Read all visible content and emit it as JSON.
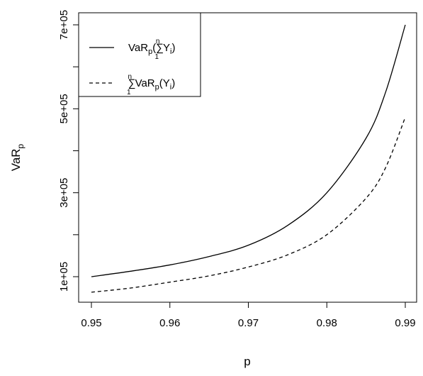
{
  "chart_data": {
    "type": "line",
    "title": "",
    "xlabel": "p",
    "ylabel": "VaR_p",
    "xlim": [
      0.95,
      0.99
    ],
    "ylim": [
      0,
      750000
    ],
    "x_ticks": [
      0.95,
      0.96,
      0.97,
      0.98,
      0.99
    ],
    "x_tick_labels": [
      "0.95",
      "0.96",
      "0.97",
      "0.98",
      "0.99"
    ],
    "y_ticks": [
      100000,
      200000,
      300000,
      400000,
      500000,
      600000,
      700000
    ],
    "y_tick_labels": [
      "1e+05",
      "",
      "3e+05",
      "",
      "5e+05",
      "",
      "7e+05"
    ],
    "grid": false,
    "legend": {
      "placement": "top-left"
    },
    "series": [
      {
        "name": "VaR_p(∑_1^n Y_i)",
        "style": "solid",
        "x": [
          0.95,
          0.955,
          0.96,
          0.965,
          0.97,
          0.975,
          0.98,
          0.985,
          0.9875,
          0.99
        ],
        "values": [
          100000,
          113000,
          128000,
          148000,
          175000,
          222000,
          300000,
          430000,
          540000,
          700000
        ]
      },
      {
        "name": "∑_1^n VaR_p(Y_i)",
        "style": "dashed",
        "x": [
          0.95,
          0.955,
          0.96,
          0.965,
          0.97,
          0.975,
          0.98,
          0.985,
          0.9875,
          0.99
        ],
        "values": [
          63000,
          73000,
          87000,
          102000,
          123000,
          152000,
          200000,
          287000,
          360000,
          480000
        ]
      }
    ]
  }
}
